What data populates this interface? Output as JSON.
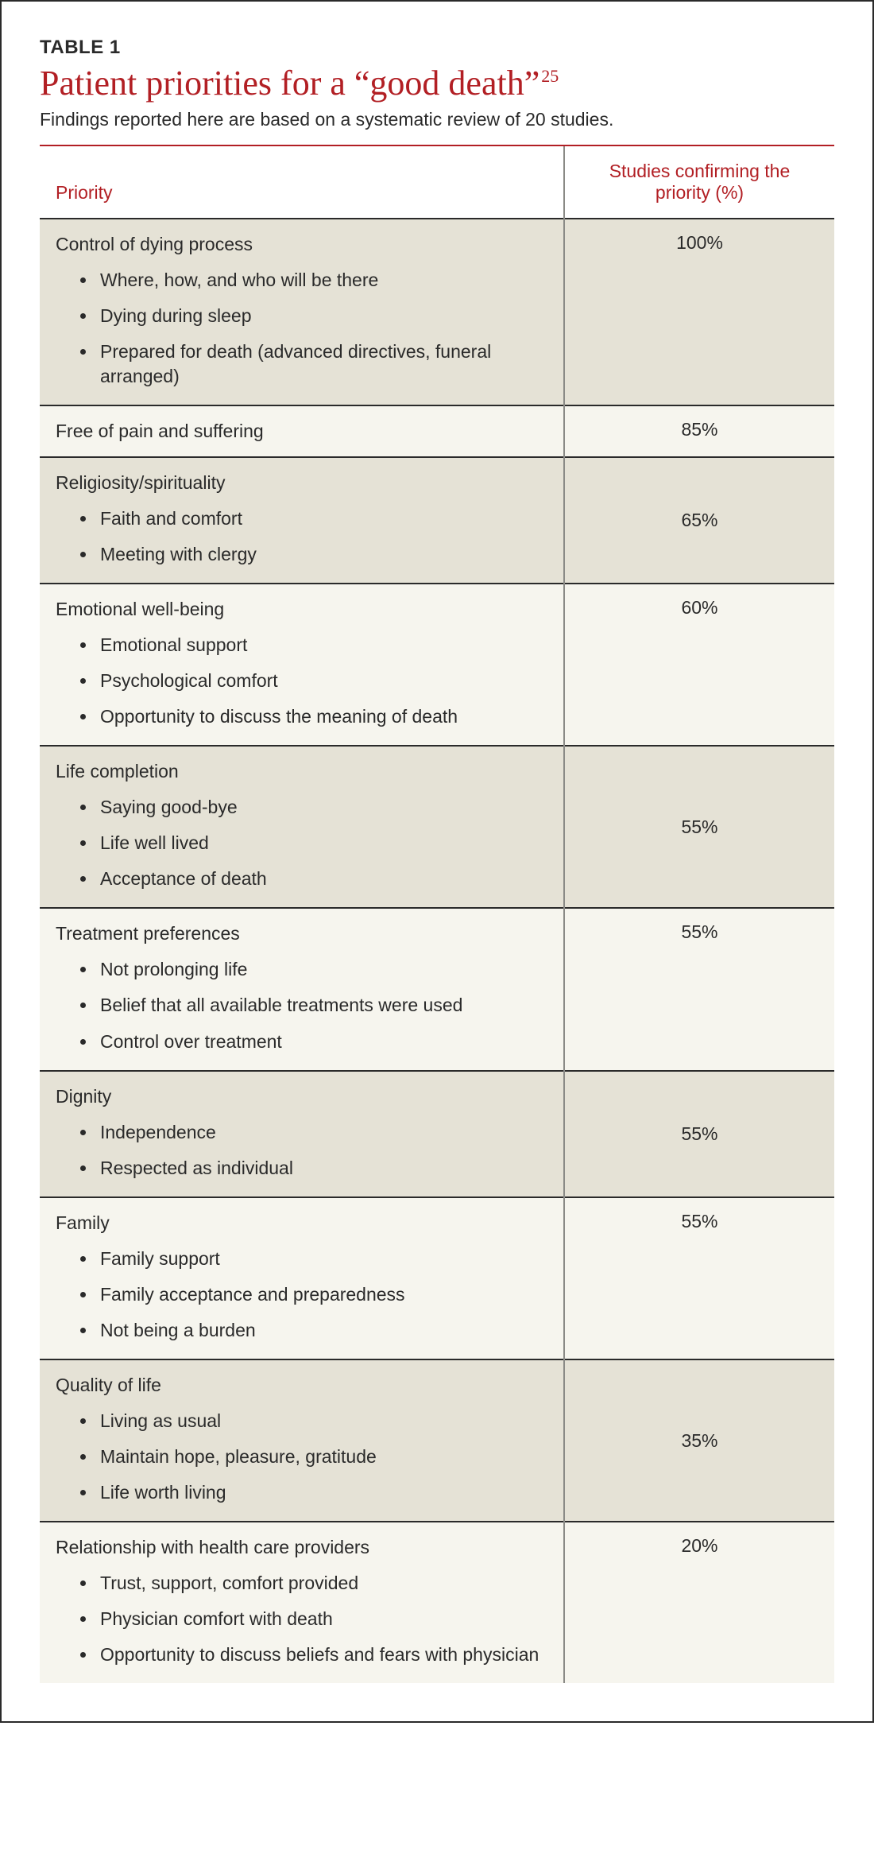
{
  "table": {
    "label": "TABLE 1",
    "title_main": "Patient priorities for a “good death”",
    "title_sup": "25",
    "subtitle": "Findings reported here are based on a systematic review of 20 studies.",
    "columns": {
      "priority": "Priority",
      "confirming": "Studies confirming the priority (%)"
    },
    "colors": {
      "accent": "#b21f24",
      "row_a": "#e5e2d6",
      "row_b": "#f6f5ee",
      "rule": "#2a2a2a"
    },
    "rows": [
      {
        "label": "Control of dying process",
        "items": [
          "Where, how, and who will be there",
          "Dying during sleep",
          "Prepared for death (advanced directives, funeral arranged)"
        ],
        "percent": "100%",
        "valign": "top"
      },
      {
        "label": "Free of pain and suffering",
        "items": [],
        "percent": "85%",
        "valign": "top"
      },
      {
        "label": "Religiosity/spirituality",
        "items": [
          "Faith and comfort",
          "Meeting with clergy"
        ],
        "percent": "65%",
        "valign": "middle"
      },
      {
        "label": "Emotional well-being",
        "items": [
          "Emotional support",
          "Psychological comfort",
          "Opportunity to discuss the meaning of death"
        ],
        "percent": "60%",
        "valign": "top"
      },
      {
        "label": "Life completion",
        "items": [
          "Saying good-bye",
          "Life well lived",
          "Acceptance of death"
        ],
        "percent": "55%",
        "valign": "middle"
      },
      {
        "label": "Treatment preferences",
        "items": [
          "Not prolonging life",
          "Belief that all available treatments were used",
          "Control over treatment"
        ],
        "percent": "55%",
        "valign": "top"
      },
      {
        "label": "Dignity",
        "items": [
          "Independence",
          "Respected as individual"
        ],
        "percent": "55%",
        "valign": "middle"
      },
      {
        "label": "Family",
        "items": [
          "Family support",
          "Family acceptance and preparedness",
          "Not being a burden"
        ],
        "percent": "55%",
        "valign": "top"
      },
      {
        "label": "Quality of life",
        "items": [
          "Living as usual",
          "Maintain hope, pleasure, gratitude",
          "Life worth living"
        ],
        "percent": "35%",
        "valign": "middle"
      },
      {
        "label": "Relationship with health care providers",
        "items": [
          "Trust, support, comfort provided",
          "Physician comfort with death",
          "Opportunity to discuss beliefs and fears with physician"
        ],
        "percent": "20%",
        "valign": "top"
      }
    ]
  }
}
